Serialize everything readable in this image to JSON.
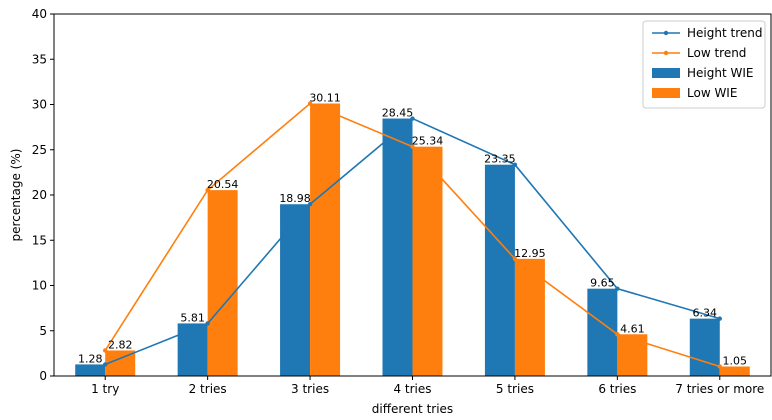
{
  "chart_data": {
    "type": "bar",
    "xlabel": "different tries",
    "ylabel": "percentage (%)",
    "ylim": [
      0,
      40
    ],
    "yticks": [
      0,
      5,
      10,
      15,
      20,
      25,
      30,
      35,
      40
    ],
    "categories": [
      "1 try",
      "2 tries",
      "3 tries",
      "4 tries",
      "5 tries",
      "6 tries",
      "7 tries or more"
    ],
    "series": [
      {
        "name": "Height WIE",
        "kind": "bar",
        "color": "#1f77b4",
        "values": [
          1.28,
          5.81,
          18.98,
          28.45,
          23.35,
          9.65,
          6.34
        ],
        "labels": [
          "1.28",
          "5.81",
          "18.98",
          "28.45",
          "23.35",
          "9.65",
          "6.34"
        ]
      },
      {
        "name": "Low WIE",
        "kind": "bar",
        "color": "#ff7f0e",
        "values": [
          2.82,
          20.54,
          30.11,
          25.34,
          12.95,
          4.61,
          1.05
        ],
        "labels": [
          "2.82",
          "20.54",
          "30.11",
          "25.34",
          "12.95",
          "4.61",
          "1.05"
        ]
      },
      {
        "name": "Height trend",
        "kind": "line",
        "color": "#1f77b4",
        "values": [
          1.28,
          5.81,
          18.98,
          28.45,
          23.35,
          9.65,
          6.34
        ]
      },
      {
        "name": "Low trend",
        "kind": "line",
        "color": "#ff7f0e",
        "values": [
          2.82,
          20.54,
          30.11,
          25.34,
          12.95,
          4.61,
          1.05
        ]
      }
    ],
    "legend": {
      "position": "top-right",
      "order": [
        "Height trend",
        "Low trend",
        "Height WIE",
        "Low WIE"
      ]
    },
    "grid": false
  }
}
